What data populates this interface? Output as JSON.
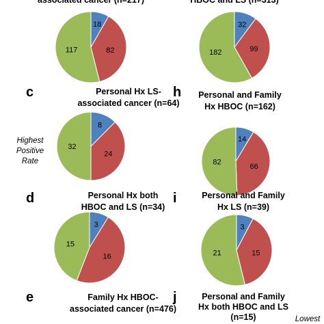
{
  "colors": {
    "blue": "#4f81bd",
    "red": "#c0504d",
    "green": "#9bbb59"
  },
  "annotations": {
    "highest": [
      "Highest",
      "Positive",
      "Rate"
    ],
    "lowest": "Lowest"
  },
  "chart_data": [
    {
      "type": "pie",
      "letter": "",
      "title": [
        "associated cancer (n=217)"
      ],
      "values": [
        18,
        82,
        117
      ]
    },
    {
      "type": "pie",
      "letter": "",
      "title": [
        "HBOC and LS (n=313)"
      ],
      "values": [
        32,
        99,
        182
      ]
    },
    {
      "type": "pie",
      "letter": "c",
      "title": [
        "Personal Hx LS-",
        "associated cancer (n=64)"
      ],
      "values": [
        8,
        24,
        32
      ]
    },
    {
      "type": "pie",
      "letter": "h",
      "title": [
        "Personal and Family",
        "Hx HBOC (n=162)"
      ],
      "values": [
        14,
        66,
        82
      ]
    },
    {
      "type": "pie",
      "letter": "d",
      "title": [
        "Personal Hx both",
        "HBOC and LS (n=34)"
      ],
      "values": [
        3,
        16,
        15
      ]
    },
    {
      "type": "pie",
      "letter": "i",
      "title": [
        "Personal and Family",
        "Hx LS (n=39)"
      ],
      "values": [
        3,
        15,
        21
      ]
    },
    {
      "type": "pie",
      "letter": "e",
      "title": [
        "Family Hx HBOC-",
        "associated cancer (n=476)"
      ],
      "values": []
    },
    {
      "type": "pie",
      "letter": "j",
      "title": [
        "Personal and Family",
        "Hx both HBOC and LS",
        "(n=15)"
      ],
      "values": []
    }
  ]
}
